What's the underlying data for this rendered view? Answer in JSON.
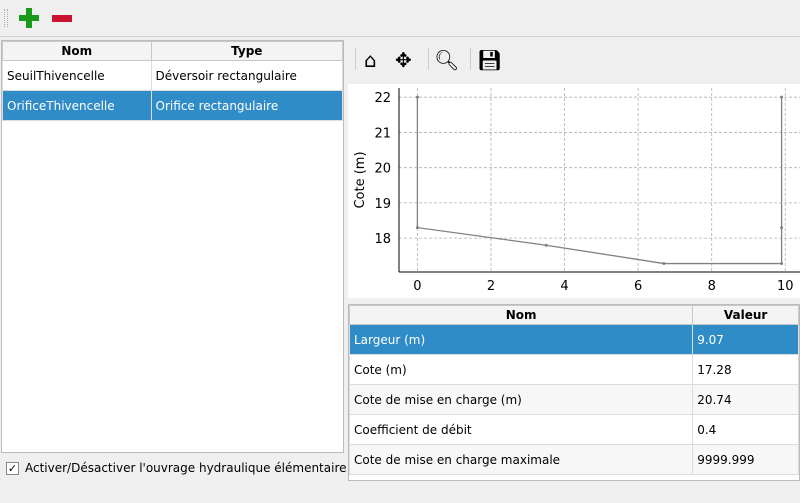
{
  "toolbar": {
    "add_icon": "plus-icon",
    "remove_icon": "minus-icon"
  },
  "structures": {
    "headers": [
      "Nom",
      "Type"
    ],
    "rows": [
      {
        "name": "SeuilThivencelle",
        "type": "Déversoir rectangulaire",
        "selected": false
      },
      {
        "name": "OrificeThivencelle",
        "type": "Orifice rectangulaire",
        "selected": true
      }
    ]
  },
  "activate_label": "Activer/Désactiver l'ouvrage hydraulique élémentaire",
  "activate_checked": true,
  "plot_toolbar": [
    "home-icon",
    "move-icon",
    "zoom-icon",
    "save-icon"
  ],
  "params": {
    "headers": [
      "Nom",
      "Valeur"
    ],
    "rows": [
      {
        "name": "Largeur (m)",
        "value": "9.07",
        "selected": true
      },
      {
        "name": "Cote (m)",
        "value": "17.28"
      },
      {
        "name": "Cote de mise en charge (m)",
        "value": "20.74"
      },
      {
        "name": "Coefficient de débit",
        "value": "0.4"
      },
      {
        "name": "Cote de mise en charge maximale",
        "value": "9999.999"
      }
    ]
  },
  "chart_data": {
    "type": "line",
    "ylabel": "Cote (m)",
    "xlabel": "",
    "x": [
      0,
      0,
      3.5,
      6.7,
      9.9,
      9.9,
      9.9
    ],
    "y": [
      22,
      18.3,
      17.8,
      17.28,
      17.28,
      18.3,
      22
    ],
    "xticks": [
      0,
      2,
      4,
      6,
      8,
      10
    ],
    "yticks": [
      18,
      19,
      20,
      21,
      22
    ],
    "xlim": [
      -0.5,
      10.4
    ],
    "ylim": [
      17.04,
      22.26
    ],
    "grid": true,
    "color": "#808080"
  }
}
